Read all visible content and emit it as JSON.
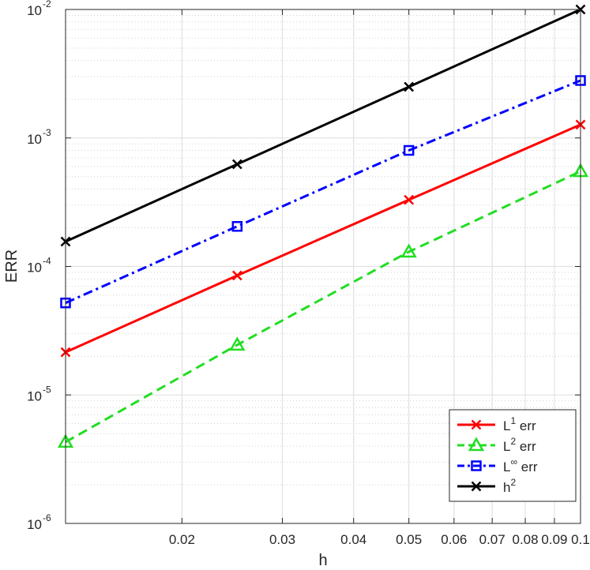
{
  "chart_data": {
    "type": "line",
    "xlabel": "h",
    "ylabel": "ERR",
    "xscale": "log",
    "yscale": "log",
    "xlim": [
      0.0125,
      0.1
    ],
    "ylim": [
      1e-06,
      0.01
    ],
    "grid": true,
    "minor_grid": true,
    "legend_position": "bottom-right",
    "x": [
      0.0125,
      0.025,
      0.05,
      0.1
    ],
    "x_ticks": [
      {
        "value": 0.02,
        "label": "0.02"
      },
      {
        "value": 0.03,
        "label": "0.03"
      },
      {
        "value": 0.04,
        "label": "0.04"
      },
      {
        "value": 0.05,
        "label": "0.05"
      },
      {
        "value": 0.06,
        "label": "0.06"
      },
      {
        "value": 0.07,
        "label": "0.07"
      },
      {
        "value": 0.08,
        "label": "0.08"
      },
      {
        "value": 0.09,
        "label": "0.09"
      },
      {
        "value": 0.1,
        "label": "0.1"
      }
    ],
    "y_ticks": [
      {
        "value": 1e-06,
        "base": "10",
        "exp": "-6"
      },
      {
        "value": 1e-05,
        "base": "10",
        "exp": "-5"
      },
      {
        "value": 0.0001,
        "base": "10",
        "exp": "-4"
      },
      {
        "value": 0.001,
        "base": "10",
        "exp": "-3"
      },
      {
        "value": 0.01,
        "base": "10",
        "exp": "-2"
      }
    ],
    "series": [
      {
        "name": "L1 err",
        "label_base": "L",
        "label_sup": "1",
        "label_rest": " err",
        "color": "#ff0000",
        "marker": "x",
        "dash": "solid",
        "values": [
          2.15e-05,
          8.5e-05,
          0.00033,
          0.00127
        ]
      },
      {
        "name": "L2 err",
        "label_base": "L",
        "label_sup": "2",
        "label_rest": " err",
        "color": "#22dd22",
        "marker": "triangle",
        "dash": "dashed",
        "values": [
          4.3e-06,
          2.45e-05,
          0.00013,
          0.00055
        ]
      },
      {
        "name": "L∞ err",
        "label_base": "L",
        "label_sup": "∞",
        "label_rest": " err",
        "color": "#0000ff",
        "marker": "square",
        "dash": "dashdot",
        "values": [
          5.2e-05,
          0.000205,
          0.0008,
          0.0028
        ]
      },
      {
        "name": "h2",
        "label_base": "h",
        "label_sup": "2",
        "label_rest": "",
        "color": "#000000",
        "marker": "x",
        "dash": "solid",
        "values": [
          0.00015625,
          0.000625,
          0.0025,
          0.01
        ]
      }
    ]
  }
}
